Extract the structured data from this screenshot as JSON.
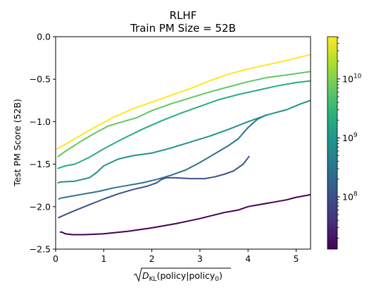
{
  "chart_data": {
    "type": "line",
    "title": "RLHF",
    "subtitle": "Train PM Size = 52B",
    "xlabel_parts": {
      "base": "D",
      "sub1": "KL",
      "arg": "(policy|policy",
      "sub2": "0",
      "close": ")"
    },
    "ylabel": "Test PM Score (52B)",
    "xlim": [
      0,
      5.3
    ],
    "ylim": [
      -2.5,
      0.0
    ],
    "xticks": [
      0,
      1,
      2,
      3,
      4,
      5
    ],
    "yticks": [
      0.0,
      -0.5,
      -1.0,
      -1.5,
      -2.0,
      -2.5
    ],
    "xtick_labels": [
      "0",
      "1",
      "2",
      "3",
      "4",
      "5"
    ],
    "ytick_labels": [
      "0.0",
      "−0.5",
      "−1.0",
      "−1.5",
      "−2.0",
      "−2.5"
    ],
    "colorbar": {
      "scale": "log",
      "range": [
        13000000,
        52000000000
      ],
      "ticks": [
        100000000,
        1000000000,
        10000000000
      ],
      "tick_base": [
        "10",
        "10",
        "10"
      ],
      "tick_exp": [
        "8",
        "9",
        "10"
      ]
    },
    "series": [
      {
        "color": "#440154",
        "x": [
          0.1,
          0.13,
          0.2,
          0.35,
          0.6,
          1.0,
          1.5,
          2.0,
          2.5,
          3.0,
          3.5,
          3.8,
          4.0,
          4.2,
          4.5,
          4.8,
          5.0,
          5.3
        ],
        "y": [
          -2.3,
          -2.3,
          -2.32,
          -2.33,
          -2.33,
          -2.32,
          -2.29,
          -2.25,
          -2.2,
          -2.14,
          -2.07,
          -2.04,
          -2.0,
          -1.98,
          -1.95,
          -1.92,
          -1.89,
          -1.86
        ]
      },
      {
        "color": "#3b528b",
        "x": [
          0.06,
          0.1,
          0.3,
          0.6,
          1.0,
          1.3,
          1.6,
          1.9,
          2.1,
          2.2,
          2.3,
          2.5,
          2.8,
          3.1,
          3.3,
          3.5,
          3.7,
          3.9,
          4.02
        ],
        "y": [
          -2.13,
          -2.12,
          -2.07,
          -2.0,
          -1.91,
          -1.85,
          -1.8,
          -1.76,
          -1.72,
          -1.68,
          -1.66,
          -1.66,
          -1.67,
          -1.67,
          -1.65,
          -1.62,
          -1.58,
          -1.5,
          -1.41
        ]
      },
      {
        "color": "#2c728e",
        "x": [
          0.07,
          0.1,
          0.3,
          0.6,
          0.9,
          1.2,
          1.5,
          1.8,
          2.1,
          2.4,
          2.7,
          3.0,
          3.3,
          3.6,
          3.8,
          4.0,
          4.2,
          4.38
        ],
        "y": [
          -1.91,
          -1.9,
          -1.88,
          -1.85,
          -1.82,
          -1.78,
          -1.75,
          -1.72,
          -1.68,
          -1.63,
          -1.57,
          -1.48,
          -1.38,
          -1.28,
          -1.2,
          -1.07,
          -0.97,
          -0.92
        ]
      },
      {
        "color": "#21918c",
        "x": [
          0.05,
          0.1,
          0.4,
          0.7,
          0.85,
          1.0,
          1.3,
          1.6,
          2.0,
          2.4,
          2.8,
          3.2,
          3.6,
          4.0,
          4.4,
          4.8,
          5.1,
          5.3
        ],
        "y": [
          -1.72,
          -1.71,
          -1.7,
          -1.66,
          -1.6,
          -1.52,
          -1.44,
          -1.4,
          -1.37,
          -1.31,
          -1.24,
          -1.17,
          -1.09,
          -1.0,
          -0.92,
          -0.86,
          -0.79,
          -0.75
        ]
      },
      {
        "color": "#27ad81",
        "x": [
          0.05,
          0.1,
          0.2,
          0.4,
          0.7,
          1.0,
          1.4,
          1.8,
          2.2,
          2.6,
          3.0,
          3.4,
          3.8,
          4.2,
          4.6,
          5.0,
          5.3
        ],
        "y": [
          -1.55,
          -1.54,
          -1.52,
          -1.5,
          -1.42,
          -1.32,
          -1.2,
          -1.09,
          -0.99,
          -0.9,
          -0.82,
          -0.74,
          -0.68,
          -0.63,
          -0.58,
          -0.54,
          -0.52
        ]
      },
      {
        "color": "#5ec962",
        "x": [
          0.05,
          0.2,
          0.5,
          0.8,
          1.1,
          1.4,
          1.7,
          2.0,
          2.4,
          2.8,
          3.2,
          3.6,
          4.0,
          4.4,
          4.8,
          5.3
        ],
        "y": [
          -1.41,
          -1.35,
          -1.24,
          -1.14,
          -1.05,
          -1.0,
          -0.95,
          -0.87,
          -0.79,
          -0.72,
          -0.65,
          -0.59,
          -0.53,
          -0.48,
          -0.45,
          -0.41
        ]
      },
      {
        "color": "#fde725",
        "x": [
          0.03,
          0.1,
          0.4,
          0.8,
          1.2,
          1.6,
          2.0,
          2.4,
          2.8,
          3.2,
          3.6,
          4.0,
          4.4,
          4.8,
          5.3
        ],
        "y": [
          -1.32,
          -1.3,
          -1.2,
          -1.07,
          -0.95,
          -0.85,
          -0.77,
          -0.69,
          -0.61,
          -0.52,
          -0.44,
          -0.38,
          -0.33,
          -0.28,
          -0.21
        ]
      }
    ]
  }
}
